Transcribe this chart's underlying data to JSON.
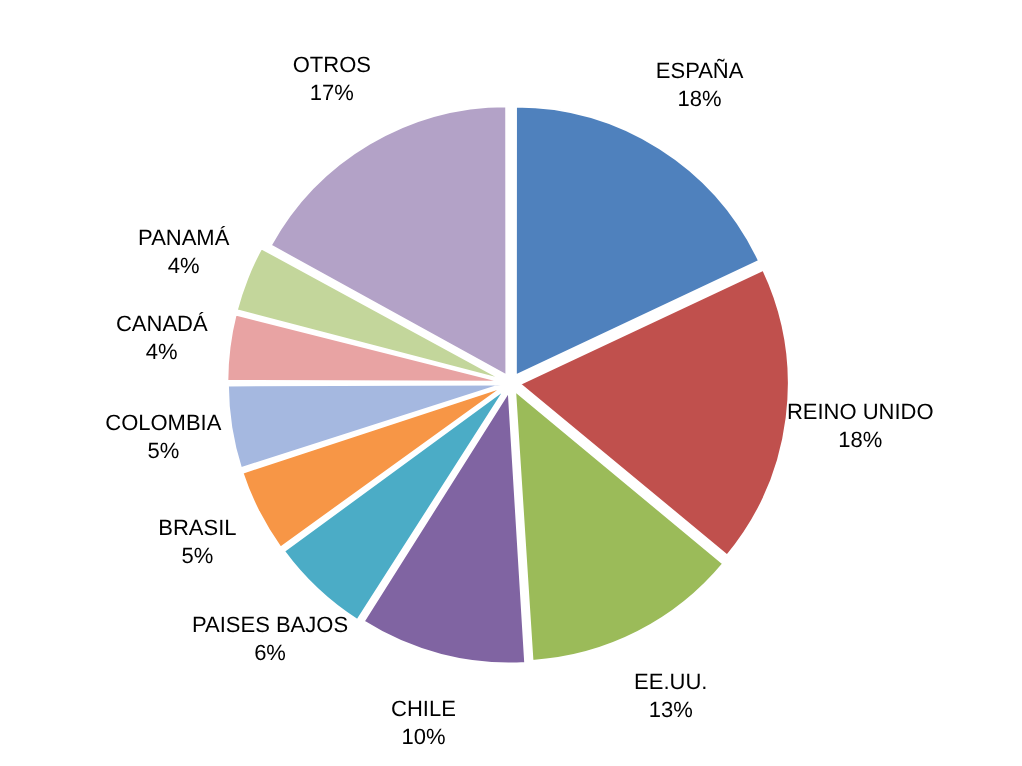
{
  "chart_data": {
    "type": "pie",
    "categories": [
      "ESPAÑA",
      "REINO UNIDO",
      "EE.UU.",
      "CHILE",
      "PAISES BAJOS",
      "BRASIL",
      "COLOMBIA",
      "CANADÁ",
      "PANAMÁ",
      "OTROS"
    ],
    "values": [
      18,
      18,
      13,
      10,
      6,
      5,
      5,
      4,
      4,
      17
    ],
    "colors": [
      "#4f81bd",
      "#c0504d",
      "#9bbb59",
      "#8064a2",
      "#4bacc6",
      "#f79646",
      "#a5b8e0",
      "#e8a3a3",
      "#c3d69b",
      "#b3a2c7"
    ],
    "value_labels": [
      "18%",
      "18%",
      "13%",
      "10%",
      "6%",
      "5%",
      "5%",
      "4%",
      "4%",
      "17%"
    ],
    "legend": false
  }
}
